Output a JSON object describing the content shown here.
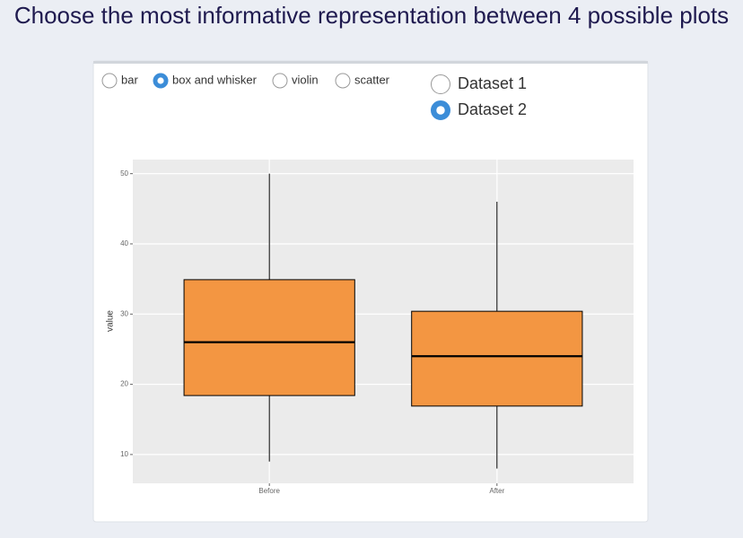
{
  "header": {
    "title": "Choose the most informative representation between 4 possible plots"
  },
  "plot_type": {
    "options": [
      "bar",
      "box and whisker",
      "violin",
      "scatter"
    ],
    "selected": 1
  },
  "dataset": {
    "options": [
      "Dataset 1",
      "Dataset 2"
    ],
    "selected": 1
  },
  "chart_data": {
    "type": "box",
    "y_label": "value",
    "categories": [
      "Before",
      "After"
    ],
    "boxes": [
      {
        "min": 9,
        "q1": 18.4,
        "median": 26,
        "q3": 34.9,
        "max": 50
      },
      {
        "min": 8,
        "q1": 16.9,
        "median": 24,
        "q3": 30.4,
        "max": 46
      }
    ],
    "color": "#f39642",
    "ylim": [
      5.9,
      52
    ],
    "yticks": [
      10,
      20,
      30,
      40,
      50
    ],
    "grid": true
  }
}
